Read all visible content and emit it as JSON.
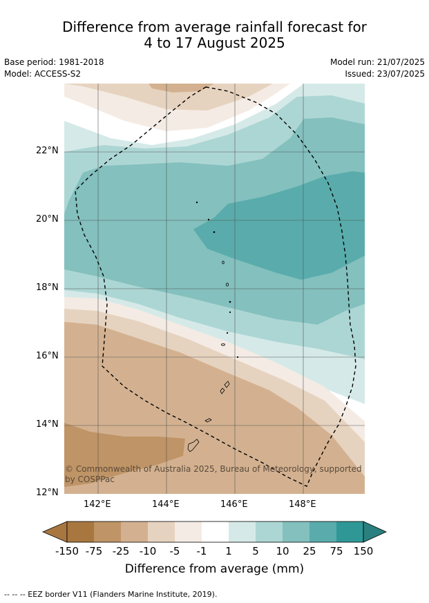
{
  "title_line1": "Difference from average rainfall forecast for",
  "title_line2": "4 to 17 August 2025",
  "meta_left": [
    "Base period: 1981-2018",
    "Model: ACCESS-S2"
  ],
  "meta_right": [
    "Model run: 21/07/2025",
    "Issued: 23/07/2025"
  ],
  "y_axis_labels": [
    "22°N",
    "20°N",
    "18°N",
    "16°N",
    "14°N",
    "12°N"
  ],
  "x_axis_labels": [
    "142°E",
    "144°E",
    "146°E",
    "148°E"
  ],
  "copyright": "© Commonwealth of Australia 2025, Bureau of Meteorology, supported by COSPPac",
  "colorbar": {
    "title": "Difference from average (mm)",
    "ticks": [
      "-150",
      "-75",
      "-25",
      "-10",
      "-5",
      "-1",
      "1",
      "5",
      "10",
      "25",
      "75",
      "150"
    ],
    "colors": [
      "#a87740",
      "#bf9466",
      "#d3b190",
      "#e6d3bf",
      "#f4ebe4",
      "#ffffff",
      "#d5eae8",
      "#acd6d4",
      "#83c0be",
      "#59acab",
      "#2f9896",
      "#2a807f"
    ]
  },
  "footnote": "--  --  -- EEZ border V11 (Flanders Marine Institute, 2019)."
}
